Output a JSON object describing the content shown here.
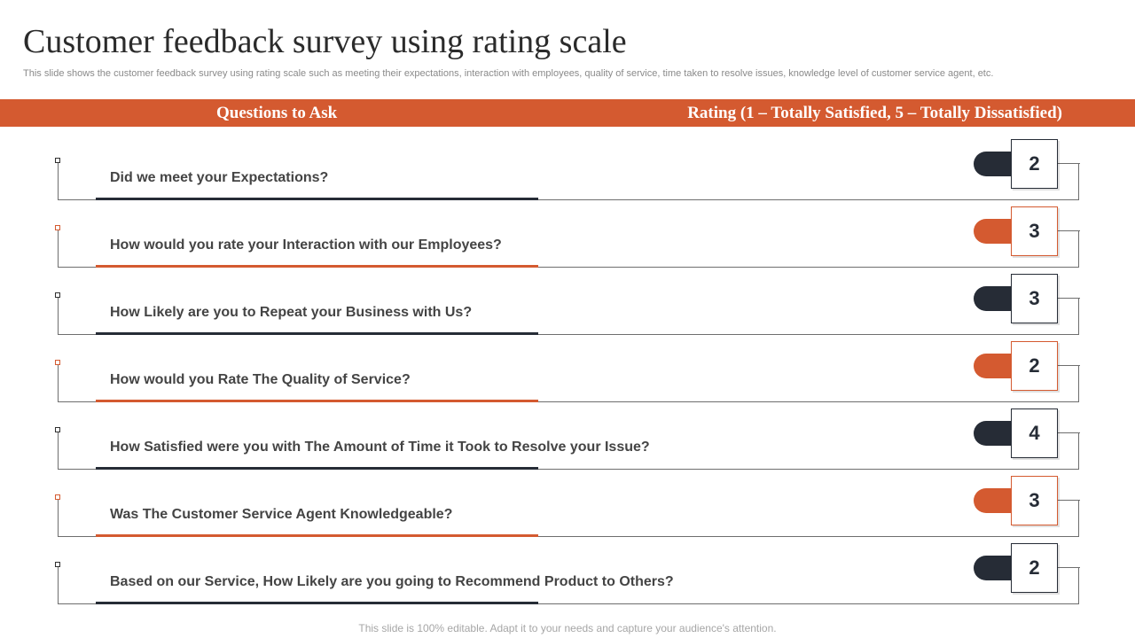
{
  "title": "Customer feedback survey using rating scale",
  "subtitle": "This slide shows the customer feedback survey using rating scale such as meeting their expectations, interaction with employees, quality of service, time taken to resolve issues, knowledge level of customer service agent, etc.",
  "header": {
    "left": "Questions to Ask",
    "right": "Rating (1 – Totally Satisfied, 5 – Totally Dissatisfied)"
  },
  "colors": {
    "accent": "#d45a30",
    "dark": "#262c36"
  },
  "rows": [
    {
      "question": "Did we meet your Expectations?",
      "rating": "2",
      "theme": "dark"
    },
    {
      "question": "How would you rate your Interaction with our Employees?",
      "rating": "3",
      "theme": "orange"
    },
    {
      "question": "How Likely are you to Repeat your Business with Us?",
      "rating": "3",
      "theme": "dark"
    },
    {
      "question": "How would you Rate The Quality of Service?",
      "rating": "2",
      "theme": "orange"
    },
    {
      "question": "How Satisfied were you with The Amount of Time it Took to Resolve your Issue?",
      "rating": "4",
      "theme": "dark"
    },
    {
      "question": "Was The Customer Service Agent Knowledgeable?",
      "rating": "3",
      "theme": "orange"
    },
    {
      "question": "Based on our Service, How Likely are you going to Recommend Product to Others?",
      "rating": "2",
      "theme": "dark"
    }
  ],
  "footer": "This slide is 100% editable. Adapt it to your needs and capture your audience's attention."
}
